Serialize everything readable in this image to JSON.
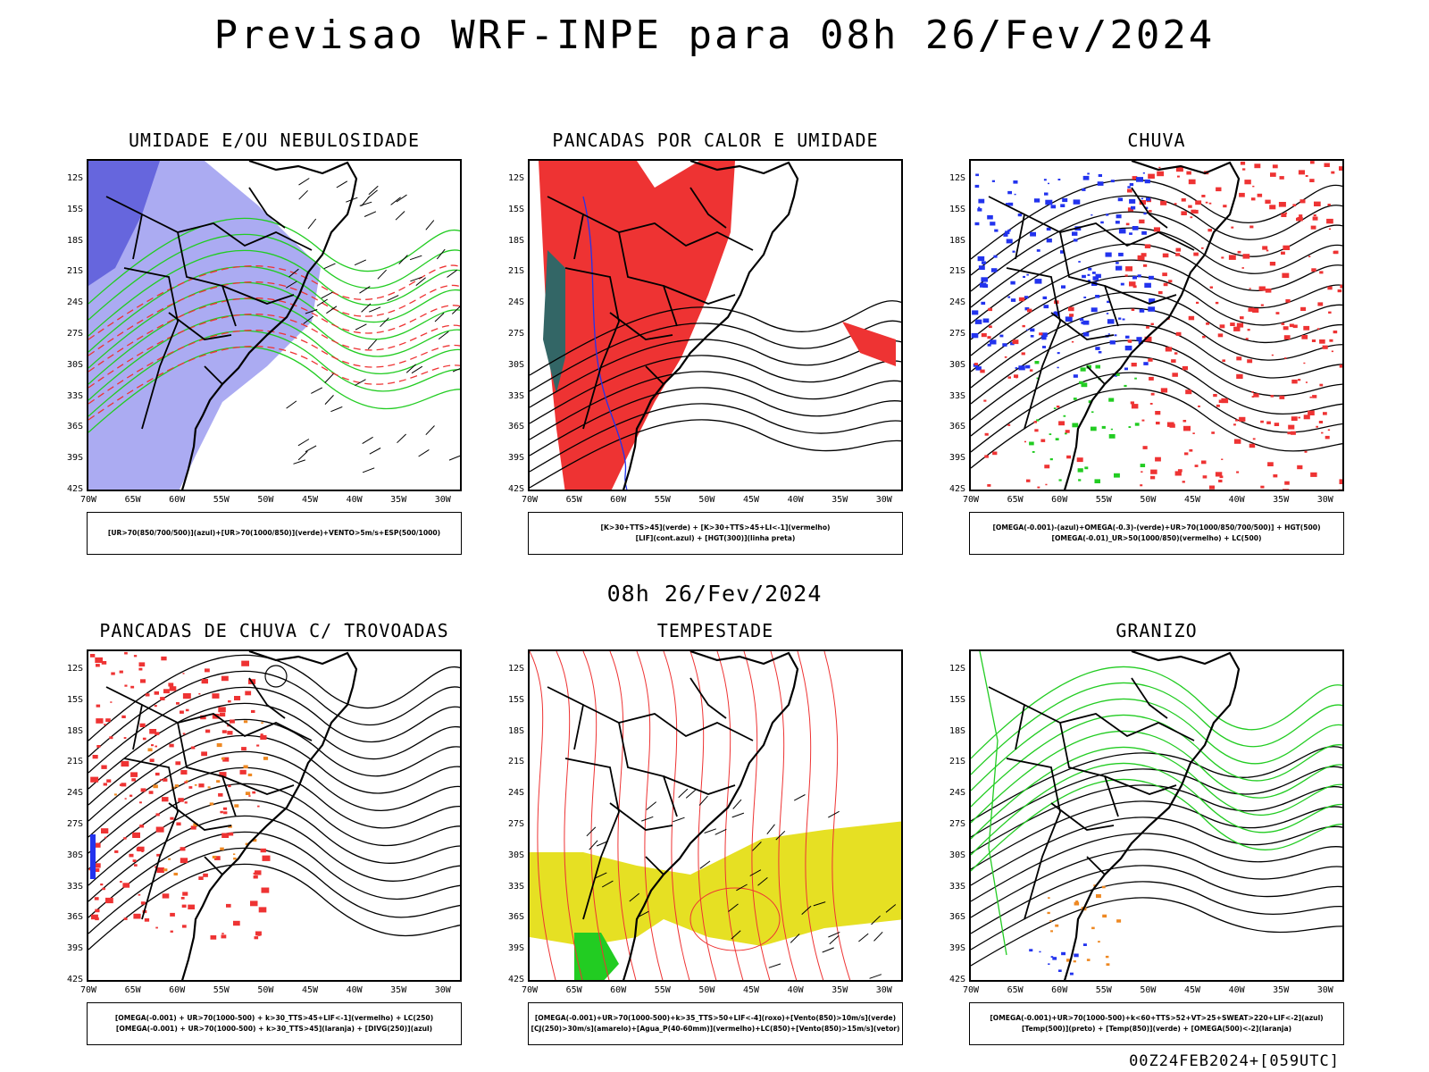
{
  "title": "Previsao WRF-INPE  para 08h 26/Fev/2024",
  "mid_title": "08h 26/Fev/2024",
  "footer": "00Z24FEB2024+[059UTC]",
  "lat_labels": [
    "12S",
    "15S",
    "18S",
    "21S",
    "24S",
    "27S",
    "30S",
    "33S",
    "36S",
    "39S",
    "42S"
  ],
  "lon_labels": [
    "70W",
    "65W",
    "60W",
    "55W",
    "50W",
    "45W",
    "40W",
    "35W",
    "30W"
  ],
  "colors": {
    "red": "#ee3333",
    "green": "#22cc22",
    "blue": "#2233ee",
    "lavender": "#9c9cf0",
    "yellow": "#e6e023",
    "orange": "#ee8822",
    "teal": "#336666",
    "purple": "#aa22cc"
  },
  "panels": [
    {
      "id": "umidade",
      "title": "UMIDADE E/OU NEBULOSIDADE",
      "legend": [
        "[UR>70(850/700/500)](azul)+[UR>70(1000/850)](verde)+VENTO>5m/s+ESP(500/1000)"
      ]
    },
    {
      "id": "pancadas-calor",
      "title": "PANCADAS POR CALOR E UMIDADE",
      "legend": [
        "[K>30+TTS>45](verde)  +  [K>30+TTS>45+LI<-1](vermelho)",
        "[LIF](cont.azul)  +  [HGT(300)](linha preta)"
      ]
    },
    {
      "id": "chuva",
      "title": "CHUVA",
      "legend": [
        "[OMEGA(-0.001)-(azul)+OMEGA(-0.3)-(verde)+UR>70(1000/850/700/500)]  +  HGT(500)",
        "[OMEGA(-0.01)_UR>50(1000/850)(vermelho)  +  LC(500)"
      ]
    },
    {
      "id": "pancadas-trovoadas",
      "title": "PANCADAS DE CHUVA C/ TROVOADAS",
      "legend": [
        "[OMEGA(-0.001)  +  UR>70(1000-500)  +  k>30_TTS>45+LIF<-1](vermelho)  +  LC(250)",
        "[OMEGA(-0.001)  +  UR>70(1000-500)  +  k>30_TTS>45](laranja)  +  [DIVG(250)](azul)"
      ]
    },
    {
      "id": "tempestade",
      "title": "TEMPESTADE",
      "legend": [
        "[OMEGA(-0.001)+UR>70(1000-500)+k>35_TTS>50+LIF<-4](roxo)+[Vento(850)>10m/s](verde)",
        "[CJ(250)>30m/s](amarelo)+[Agua_P(40-60mm)](vermelho)+LC(850)+[Vento(850)>15m/s](vetor)"
      ]
    },
    {
      "id": "granizo",
      "title": "GRANIZO",
      "legend": [
        "[OMEGA(-0.001)+UR>70(1000-500)+k<60+TTS>52+VT>25+SWEAT>220+LIF<-2](azul)",
        "[Temp(500)](preto)  +  [Temp(850)](verde)  +  [OMEGA(500)<-2](laranja)"
      ]
    }
  ]
}
